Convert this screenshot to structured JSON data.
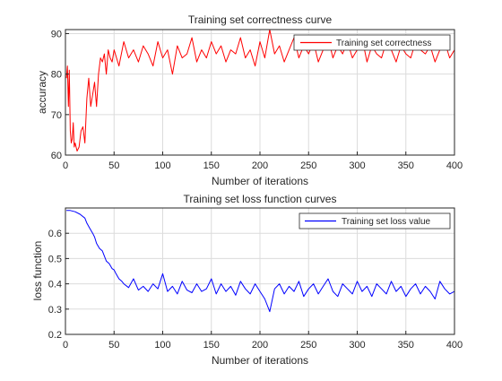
{
  "chart_data": [
    {
      "type": "line",
      "title": "Training set correctness curve",
      "xlabel": "Number of iterations",
      "ylabel": "accuracy",
      "xlim": [
        0,
        400
      ],
      "ylim": [
        60,
        91
      ],
      "xticks": [
        0,
        50,
        100,
        150,
        200,
        250,
        300,
        350,
        400
      ],
      "yticks": [
        60,
        70,
        80,
        90
      ],
      "grid": true,
      "legend_position": "top-right",
      "series": [
        {
          "name": "Training set correctness",
          "color": "#ff0000",
          "x": [
            1,
            2,
            3,
            4,
            5,
            6,
            7,
            8,
            9,
            10,
            12,
            14,
            16,
            18,
            20,
            22,
            24,
            26,
            28,
            30,
            32,
            34,
            36,
            38,
            40,
            42,
            44,
            46,
            48,
            50,
            55,
            60,
            65,
            70,
            75,
            80,
            85,
            90,
            95,
            100,
            105,
            110,
            115,
            120,
            125,
            130,
            135,
            140,
            145,
            150,
            155,
            160,
            165,
            170,
            175,
            180,
            185,
            190,
            195,
            200,
            205,
            210,
            215,
            220,
            225,
            230,
            235,
            240,
            245,
            250,
            255,
            260,
            265,
            270,
            275,
            280,
            285,
            290,
            295,
            300,
            305,
            310,
            315,
            320,
            325,
            330,
            335,
            340,
            345,
            350,
            355,
            360,
            365,
            370,
            375,
            380,
            385,
            390,
            395,
            400
          ],
          "y": [
            79,
            82,
            72,
            81,
            66,
            63,
            64,
            68,
            62,
            63,
            61,
            62,
            66,
            67,
            63,
            74,
            79,
            72,
            75,
            78,
            72,
            80,
            84,
            83,
            85,
            80,
            86,
            84,
            83,
            86,
            82,
            88,
            84,
            86,
            83,
            87,
            85,
            82,
            88,
            84,
            86,
            80,
            87,
            84,
            85,
            89,
            83,
            86,
            84,
            88,
            85,
            87,
            83,
            86,
            85,
            89,
            84,
            86,
            82,
            88,
            84,
            91,
            85,
            87,
            83,
            86,
            89,
            84,
            87,
            85,
            88,
            83,
            86,
            89,
            84,
            87,
            85,
            88,
            84,
            86,
            89,
            83,
            87,
            85,
            84,
            88,
            86,
            83,
            87,
            85,
            84,
            88,
            86,
            85,
            87,
            83,
            86,
            88,
            84,
            86
          ]
        }
      ]
    },
    {
      "type": "line",
      "title": "Training set loss function curves",
      "xlabel": "Number of iterations",
      "ylabel": "loss function",
      "xlim": [
        0,
        400
      ],
      "ylim": [
        0.2,
        0.7
      ],
      "xticks": [
        0,
        50,
        100,
        150,
        200,
        250,
        300,
        350,
        400
      ],
      "yticks": [
        0.2,
        0.3,
        0.4,
        0.5,
        0.6
      ],
      "grid": true,
      "legend_position": "top-right",
      "series": [
        {
          "name": "Training set loss value",
          "color": "#0000ff",
          "x": [
            1,
            5,
            10,
            15,
            20,
            22,
            25,
            28,
            30,
            32,
            35,
            38,
            40,
            42,
            45,
            48,
            50,
            52,
            55,
            58,
            60,
            65,
            70,
            75,
            80,
            85,
            90,
            95,
            100,
            105,
            110,
            115,
            120,
            125,
            130,
            135,
            140,
            145,
            150,
            155,
            160,
            165,
            170,
            175,
            180,
            185,
            190,
            195,
            200,
            205,
            210,
            215,
            220,
            225,
            230,
            235,
            240,
            245,
            250,
            255,
            260,
            265,
            270,
            275,
            280,
            285,
            290,
            295,
            300,
            305,
            310,
            315,
            320,
            325,
            330,
            335,
            340,
            345,
            350,
            355,
            360,
            365,
            370,
            375,
            380,
            385,
            390,
            395,
            400
          ],
          "y": [
            0.69,
            0.69,
            0.685,
            0.675,
            0.66,
            0.64,
            0.62,
            0.6,
            0.585,
            0.56,
            0.54,
            0.53,
            0.51,
            0.49,
            0.48,
            0.46,
            0.455,
            0.44,
            0.42,
            0.41,
            0.4,
            0.385,
            0.42,
            0.375,
            0.39,
            0.37,
            0.4,
            0.38,
            0.44,
            0.37,
            0.39,
            0.36,
            0.41,
            0.375,
            0.365,
            0.4,
            0.37,
            0.38,
            0.42,
            0.36,
            0.4,
            0.37,
            0.39,
            0.355,
            0.41,
            0.38,
            0.36,
            0.4,
            0.37,
            0.34,
            0.29,
            0.38,
            0.4,
            0.36,
            0.39,
            0.37,
            0.41,
            0.35,
            0.38,
            0.4,
            0.36,
            0.39,
            0.42,
            0.37,
            0.35,
            0.4,
            0.38,
            0.36,
            0.41,
            0.37,
            0.39,
            0.35,
            0.4,
            0.38,
            0.36,
            0.41,
            0.37,
            0.39,
            0.35,
            0.38,
            0.4,
            0.36,
            0.39,
            0.37,
            0.34,
            0.41,
            0.38,
            0.36,
            0.37
          ]
        }
      ]
    }
  ]
}
